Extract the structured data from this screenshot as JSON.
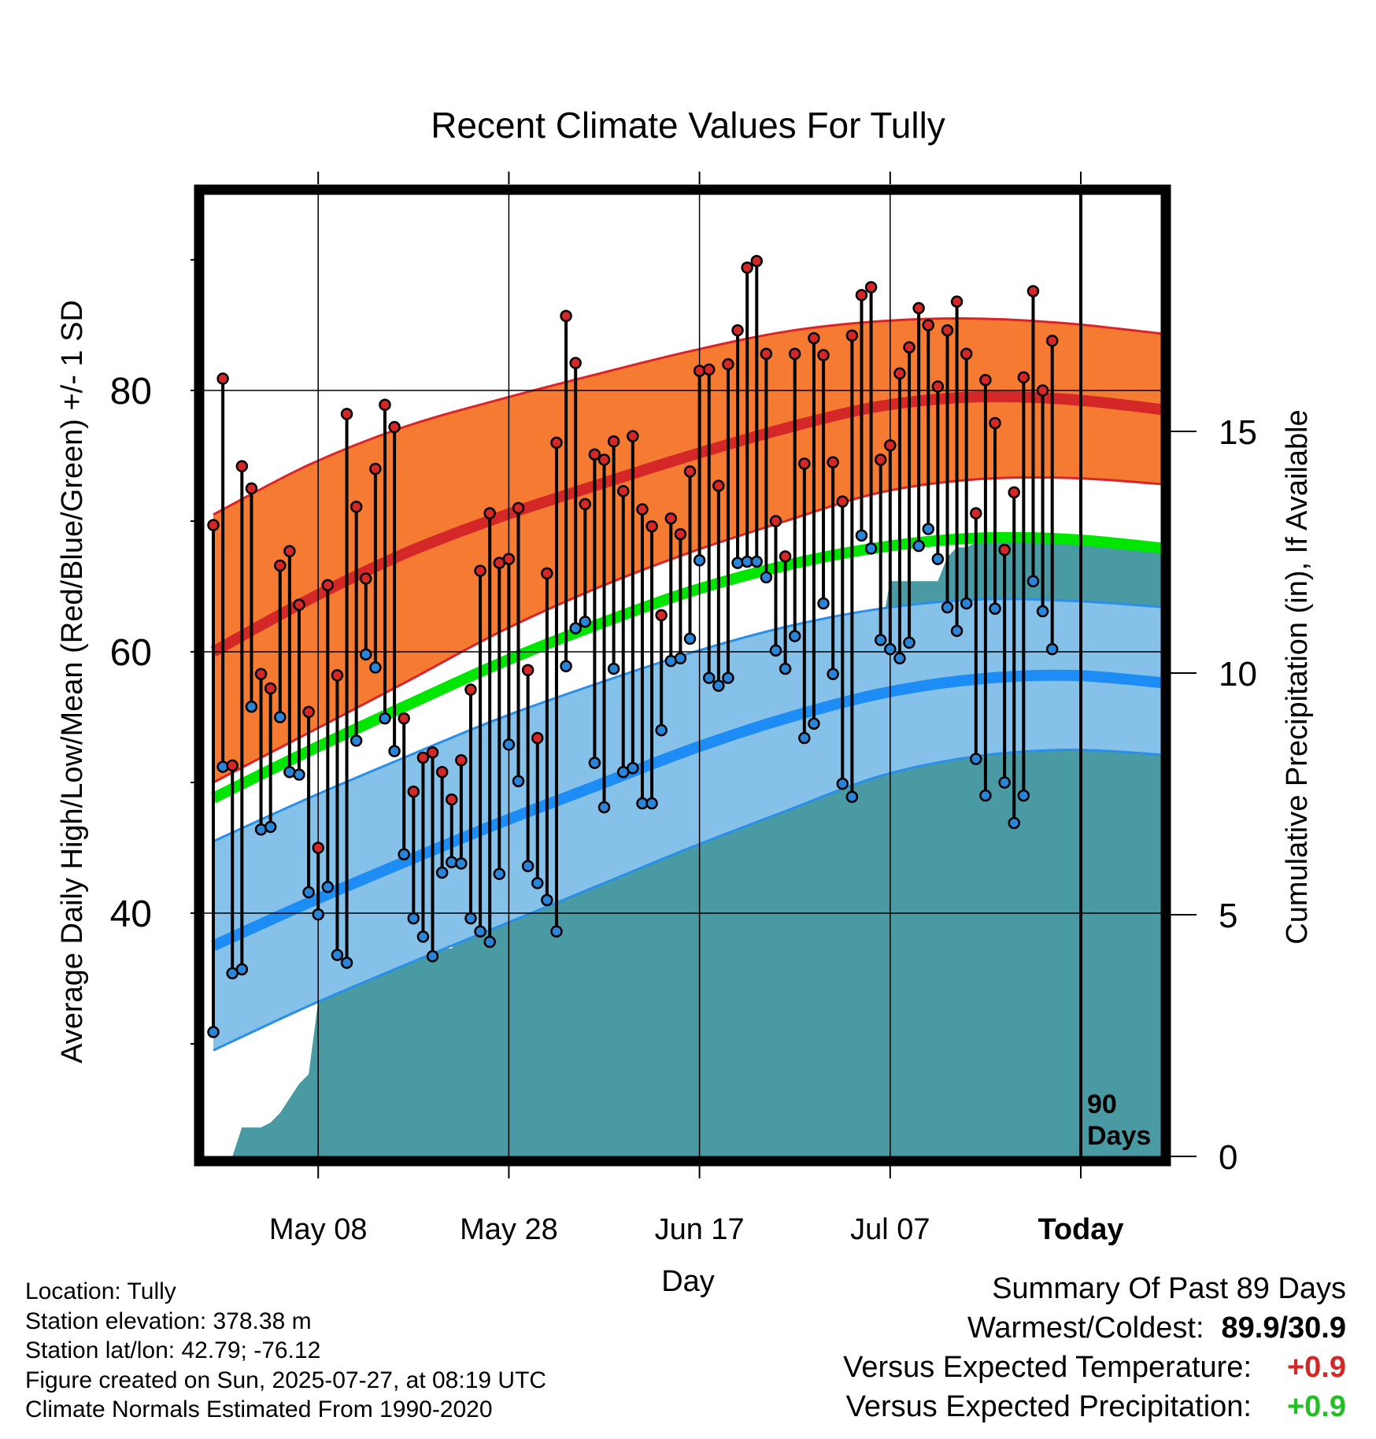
{
  "chart_data": {
    "type": "line",
    "title": "Recent Climate Values For Tully",
    "xlabel": "Day",
    "ylabel": "Average Daily High/Low/Mean (Red/Blue/Green) +/- 1 SD",
    "y2label": "Cumulative Precipitation (in), If Available",
    "x_ticks": [
      "May 08",
      "May 28",
      "Jun 17",
      "Jul 07",
      "Today"
    ],
    "x_tick_days": [
      11,
      31,
      51,
      71,
      91
    ],
    "xlim_days": [
      0,
      100
    ],
    "ylim": [
      22,
      98
    ],
    "y_ticks": [
      40,
      60,
      80
    ],
    "y2lim": [
      0,
      20.8
    ],
    "y2_ticks": [
      0,
      5,
      10,
      15
    ],
    "grid": true,
    "today_marker_label_1": "90",
    "today_marker_label_2": "Days",
    "colors": {
      "high_band": "#f57a32",
      "high_band_edge": "#d9252a",
      "high_mean": "#d42728",
      "low_band": "#85c1e8",
      "low_band_edge": "#2a8fe8",
      "low_mean": "#1e8cf5",
      "mean": "#00e600",
      "precip": "#4a9aa3",
      "high_dot": "#d42728",
      "low_dot": "#2a85d8"
    },
    "normals_days": [
      0,
      10,
      20,
      30,
      40,
      50,
      60,
      70,
      80,
      90,
      100
    ],
    "normal_high": [
      60.0,
      64.0,
      67.5,
      70.3,
      72.7,
      75.0,
      77.1,
      78.8,
      79.5,
      79.3,
      78.5
    ],
    "normal_high_sd_upper": [
      70.5,
      74.3,
      77.2,
      79.3,
      81.2,
      83.0,
      84.5,
      85.3,
      85.5,
      85.1,
      84.3
    ],
    "normal_high_sd_lower": [
      50.0,
      53.8,
      57.6,
      61.5,
      64.8,
      67.6,
      70.0,
      72.2,
      73.2,
      73.3,
      72.8
    ],
    "normal_mean": [
      48.8,
      52.4,
      55.8,
      59.1,
      62.0,
      64.6,
      66.6,
      68.0,
      68.7,
      68.6,
      67.9
    ],
    "normal_low": [
      37.5,
      40.8,
      43.9,
      46.9,
      49.7,
      52.5,
      54.9,
      56.8,
      57.9,
      58.2,
      57.6
    ],
    "normal_low_sd_upper": [
      45.5,
      48.8,
      51.9,
      54.9,
      57.5,
      59.9,
      61.9,
      63.3,
      64.0,
      63.9,
      63.4
    ],
    "normal_low_sd_lower": [
      29.5,
      32.9,
      36.0,
      39.0,
      42.0,
      45.0,
      47.8,
      50.5,
      52.0,
      52.5,
      52.1
    ],
    "daily_high": [
      69.7,
      80.9,
      51.3,
      74.2,
      72.5,
      58.3,
      57.2,
      66.6,
      67.7,
      63.6,
      55.4,
      45.0,
      65.1,
      58.2,
      78.2,
      71.1,
      65.6,
      74.0,
      78.9,
      77.2,
      54.9,
      49.3,
      51.9,
      52.3,
      50.8,
      48.7,
      51.7,
      57.1,
      66.2,
      70.6,
      66.8,
      67.1,
      71.0,
      58.6,
      53.4,
      66.0,
      76.0,
      85.7,
      82.1,
      71.3,
      75.1,
      74.7,
      76.1,
      72.3,
      76.5,
      70.9,
      69.6,
      62.8,
      70.2,
      69.0,
      73.8,
      81.5,
      81.6,
      72.7,
      82.0,
      84.6,
      89.4,
      89.9,
      82.8,
      70.0,
      67.3,
      82.8,
      74.4,
      84.0,
      82.7,
      74.5,
      71.5,
      84.2,
      87.3,
      87.9,
      74.7,
      75.8,
      81.3,
      83.3,
      86.3,
      85.0,
      80.3,
      84.6,
      86.8,
      82.8,
      70.6,
      80.8,
      77.5,
      67.8,
      72.2,
      81.0,
      87.6,
      80.0,
      83.8
    ],
    "daily_low": [
      30.9,
      51.2,
      35.4,
      35.7,
      55.8,
      46.4,
      46.6,
      55.0,
      50.8,
      50.6,
      41.6,
      39.9,
      42.0,
      36.8,
      36.2,
      53.2,
      59.8,
      58.8,
      54.9,
      52.4,
      44.5,
      39.6,
      38.2,
      36.7,
      43.1,
      43.9,
      43.8,
      39.6,
      38.6,
      37.8,
      43.0,
      52.9,
      50.1,
      43.6,
      42.3,
      41.0,
      38.6,
      58.9,
      61.8,
      62.3,
      51.5,
      48.1,
      58.7,
      50.8,
      51.1,
      48.4,
      48.4,
      54.0,
      59.3,
      59.5,
      61.0,
      67.0,
      58.0,
      57.4,
      58.0,
      66.8,
      66.9,
      66.9,
      65.7,
      60.1,
      58.7,
      61.2,
      53.4,
      54.5,
      63.7,
      58.3,
      49.9,
      48.9,
      68.9,
      67.9,
      60.9,
      60.2,
      59.5,
      60.7,
      68.1,
      69.4,
      67.1,
      63.4,
      61.6,
      63.7,
      51.8,
      49.0,
      63.3,
      50.0,
      46.9,
      49.0,
      65.4,
      63.1,
      60.2
    ],
    "precip_days": [
      0,
      1,
      2,
      3,
      4,
      5,
      6,
      7,
      8,
      9,
      10,
      11,
      12,
      13,
      14,
      15,
      16,
      17,
      18,
      19,
      20,
      21,
      22,
      23,
      24,
      25,
      26,
      27,
      28,
      29,
      30,
      31,
      32,
      33,
      34,
      35,
      36,
      37,
      38,
      39,
      40,
      41,
      42,
      43,
      44,
      45,
      46,
      47,
      48,
      49,
      50,
      51,
      52,
      53,
      54,
      55,
      56,
      57,
      58,
      59,
      60,
      61,
      62,
      63,
      64,
      65,
      66,
      67,
      68,
      69,
      70,
      71,
      72,
      73,
      74,
      75,
      76,
      77,
      78,
      79,
      80,
      81,
      82,
      83,
      84,
      85,
      86,
      87,
      88,
      89,
      90,
      91,
      92,
      93,
      94,
      95,
      96,
      97,
      98,
      99,
      100
    ],
    "cumulative_precip": [
      0.0,
      0.0,
      0.0,
      0.6,
      0.6,
      0.6,
      0.7,
      0.9,
      1.2,
      1.5,
      1.7,
      3.2,
      3.6,
      3.6,
      4.0,
      4.0,
      4.0,
      4.0,
      4.0,
      4.0,
      4.0,
      4.1,
      4.2,
      4.3,
      4.3,
      4.3,
      4.6,
      4.9,
      5.3,
      5.6,
      5.6,
      5.6,
      5.8,
      5.8,
      6.0,
      6.2,
      6.3,
      6.3,
      6.3,
      6.3,
      6.5,
      6.9,
      7.6,
      7.7,
      8.8,
      9.0,
      9.0,
      9.1,
      9.2,
      9.2,
      9.2,
      9.2,
      9.2,
      9.3,
      9.5,
      9.5,
      10.0,
      10.0,
      10.0,
      10.2,
      10.2,
      10.2,
      10.4,
      10.4,
      10.4,
      10.5,
      10.5,
      10.8,
      10.8,
      10.8,
      10.8,
      11.9,
      11.9,
      11.9,
      11.9,
      11.9,
      11.9,
      12.4,
      12.6,
      12.6,
      12.7,
      12.7,
      12.7,
      12.7,
      12.7,
      12.7,
      12.7,
      12.7,
      12.7,
      12.7,
      12.7,
      12.7,
      12.7,
      12.7,
      12.7,
      12.7,
      12.7,
      12.7,
      12.7,
      12.7,
      12.7
    ]
  },
  "footer": {
    "location": "Location: Tully",
    "elevation": "Station elevation: 378.38 m",
    "latlon": "Station lat/lon: 42.79; -76.12",
    "created": "Figure created on Sun, 2025-07-27, at 08:19 UTC",
    "normals": "Climate Normals Estimated From 1990-2020"
  },
  "summary": {
    "heading": "Summary Of Past 89 Days",
    "warm_cold_label": "Warmest/Coldest:",
    "warm_cold_value": "89.9/30.9",
    "temp_label": "Versus Expected Temperature:",
    "temp_value": "+0.9",
    "temp_color": "#d42728",
    "precip_label": "Versus Expected Precipitation:",
    "precip_value": "+0.9",
    "precip_color": "#22c022"
  }
}
